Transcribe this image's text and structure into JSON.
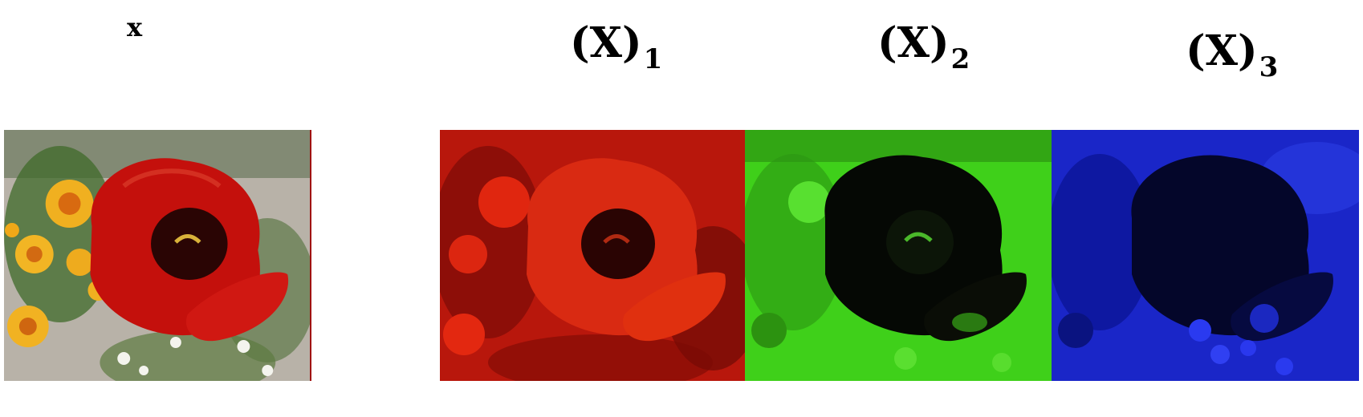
{
  "labels": {
    "input": "x",
    "channel1_base": "(X)",
    "channel1_sub": "1",
    "channel2_base": "(X)",
    "channel2_sub": "2",
    "channel3_base": "(X)",
    "channel3_sub": "3"
  },
  "colors": {
    "red_channel": "#d11a0a",
    "green_channel": "#3fd01a",
    "blue_channel": "#1a26c8",
    "tulip_red": "#c4100c",
    "tulip_center": "#2a0504",
    "yellow_flower": "#f0b020",
    "foliage": "#3f6a2a",
    "gravel": "#b8b2a8"
  },
  "panels": [
    {
      "name": "original-image",
      "content": "red-tulip-photo"
    },
    {
      "name": "red-channel-image",
      "content": "red-channel"
    },
    {
      "name": "green-channel-image",
      "content": "green-channel"
    },
    {
      "name": "blue-channel-image",
      "content": "blue-channel"
    }
  ]
}
